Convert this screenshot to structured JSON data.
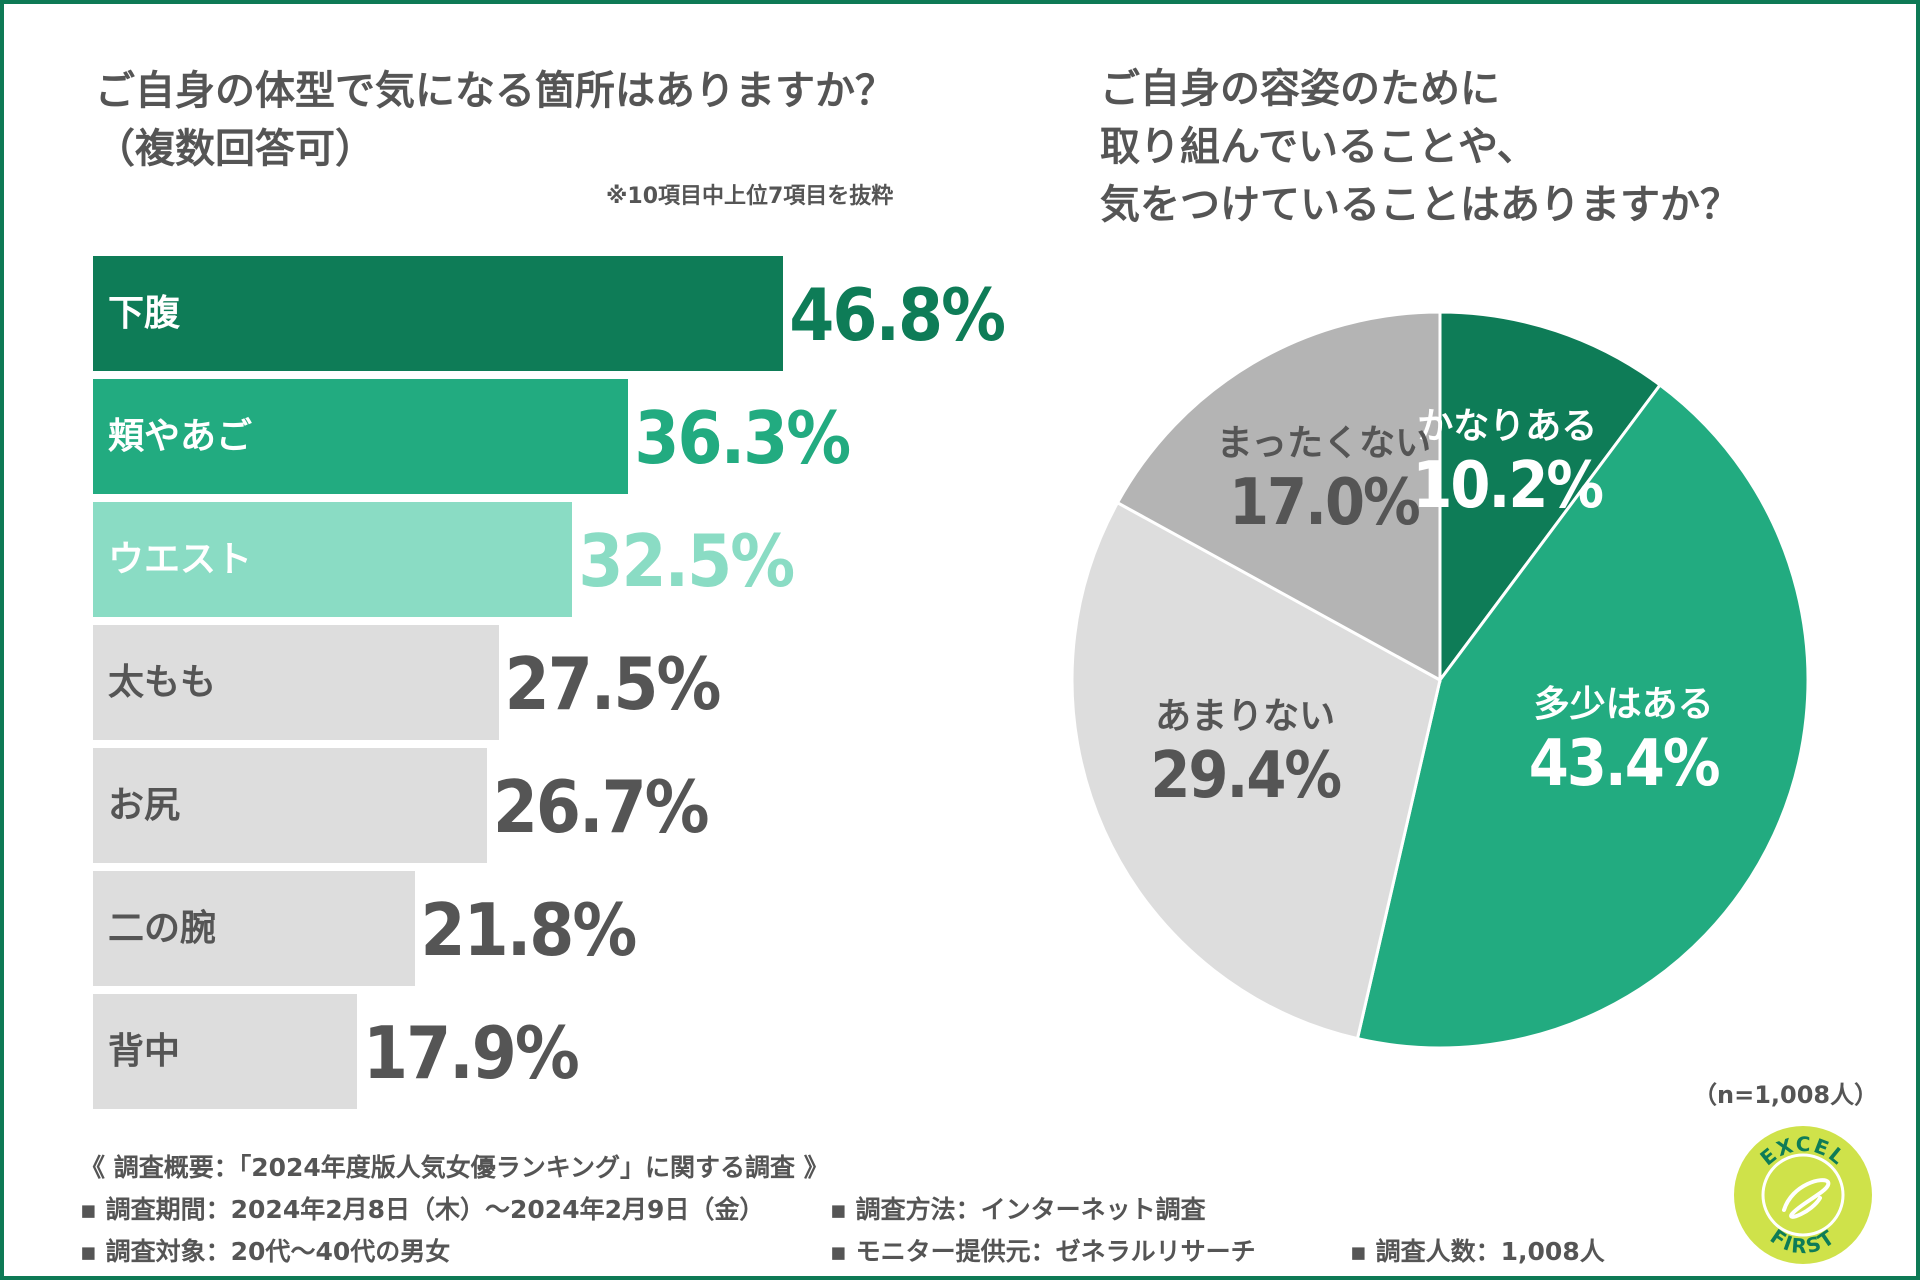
{
  "left_chart": {
    "title_line1": "ご自身の体型で気になる箇所はありますか？",
    "title_line2": "（複数回答可）",
    "note": "※10項目中上位7項目を抜粋"
  },
  "right_chart": {
    "title_line1": "ご自身の容姿のために",
    "title_line2": "取り組んでいることや、",
    "title_line3": "気をつけていることはありますか？",
    "sample": "（n=1,008人）"
  },
  "chart_data": [
    {
      "type": "bar",
      "orientation": "horizontal",
      "title": "ご自身の体型で気になる箇所はありますか？（複数回答可）",
      "categories": [
        "下腹",
        "頬やあご",
        "ウエスト",
        "太もも",
        "お尻",
        "二の腕",
        "背中"
      ],
      "values": [
        46.8,
        36.3,
        32.5,
        27.5,
        26.7,
        21.8,
        17.9
      ],
      "value_labels": [
        "46.8%",
        "36.3%",
        "32.5%",
        "27.5%",
        "26.7%",
        "21.8%",
        "17.9%"
      ],
      "bar_colors": [
        "#0e7c57",
        "#22ab80",
        "#8adcc4",
        "#dddddd",
        "#dddddd",
        "#dddddd",
        "#dddddd"
      ],
      "label_colors": [
        "#ffffff",
        "#ffffff",
        "#ffffff",
        "#555555",
        "#555555",
        "#555555",
        "#555555"
      ],
      "value_colors": [
        "#0e7c57",
        "#22ab80",
        "#8adcc4",
        "#555555",
        "#555555",
        "#555555",
        "#555555"
      ],
      "unit": "%"
    },
    {
      "type": "pie",
      "title": "ご自身の容姿のために取り組んでいることや、気をつけていることはありますか？",
      "categories": [
        "かなりある",
        "多少はある",
        "あまりない",
        "まったくない"
      ],
      "values": [
        10.2,
        43.4,
        29.4,
        17.0
      ],
      "value_labels": [
        "10.2%",
        "43.4%",
        "29.4%",
        "17.0%"
      ],
      "slice_colors": [
        "#0e7c57",
        "#22ab80",
        "#dddddd",
        "#b4b4b4"
      ],
      "label_colors": [
        "#ffffff",
        "#ffffff",
        "#555555",
        "#555555"
      ],
      "start": "12 o'clock",
      "direction": "clockwise"
    }
  ],
  "survey": {
    "heading": "《 調査概要：「2024年度版人気女優ランキング」に関する調査 》",
    "period": "▪ 調査期間：2024年2月8日（木）〜2024年2月9日（金）",
    "method": "▪ 調査方法：インターネット調査",
    "target": "▪ 調査対象：20代〜40代の男女",
    "provider": "▪ モニター提供元：ゼネラルリサーチ",
    "count": "▪ 調査人数：1,008人"
  },
  "logo": {
    "text_top": "EXCEL",
    "text_bottom": "FIRST",
    "colors": {
      "fill": "#cfe24a",
      "ring": "#ffffff",
      "text": "#0e7c57"
    }
  }
}
